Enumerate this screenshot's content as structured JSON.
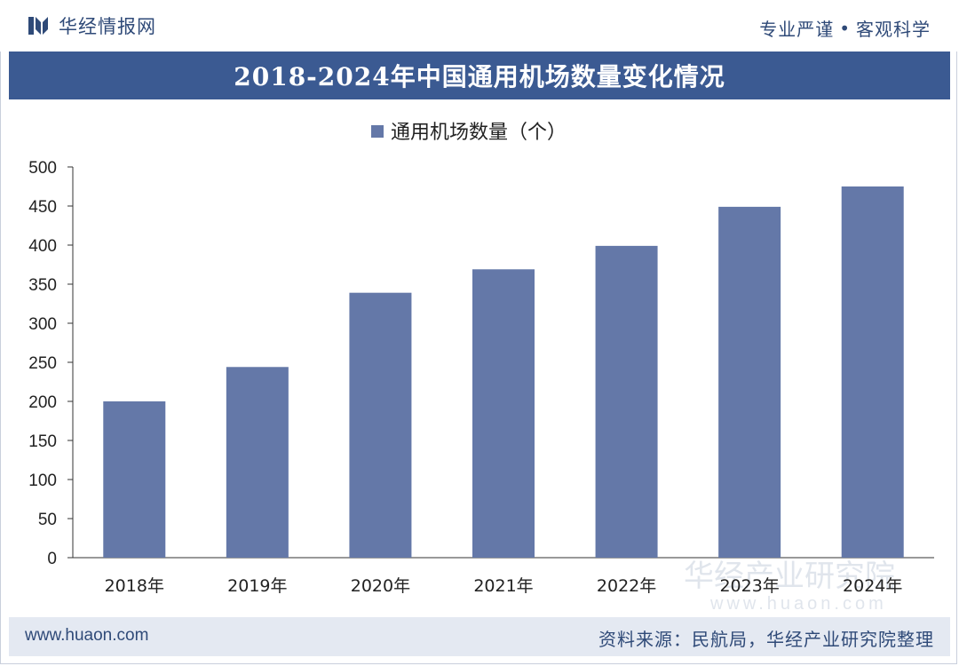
{
  "header": {
    "brand": "华经情报网",
    "slogan_left": "专业严谨",
    "slogan_sep": "•",
    "slogan_right": "客观科学",
    "title": "2018-2024年中国通用机场数量变化情况"
  },
  "footer": {
    "url": "www.huaon.com",
    "source": "资料来源：民航局，华经产业研究院整理"
  },
  "watermark": {
    "cn": "华经产业研究院",
    "en": "www.huaon.com"
  },
  "colors": {
    "bar": "#6478a8",
    "title_bg": "#3b5a92",
    "brand": "#2f4a78",
    "footer_bg": "#e4e9f2"
  },
  "chart_data": {
    "type": "bar",
    "categories": [
      "2018年",
      "2019年",
      "2020年",
      "2021年",
      "2022年",
      "2023年",
      "2024年"
    ],
    "series": [
      {
        "name": "通用机场数量（个）",
        "values": [
          200,
          244,
          339,
          369,
          399,
          449,
          475
        ]
      }
    ],
    "title": "2018-2024年中国通用机场数量变化情况",
    "xlabel": "",
    "ylabel": "",
    "ylim": [
      0,
      500
    ],
    "yticks": [
      0,
      50,
      100,
      150,
      200,
      250,
      300,
      350,
      400,
      450,
      500
    ],
    "grid": false,
    "legend": "top-center"
  }
}
